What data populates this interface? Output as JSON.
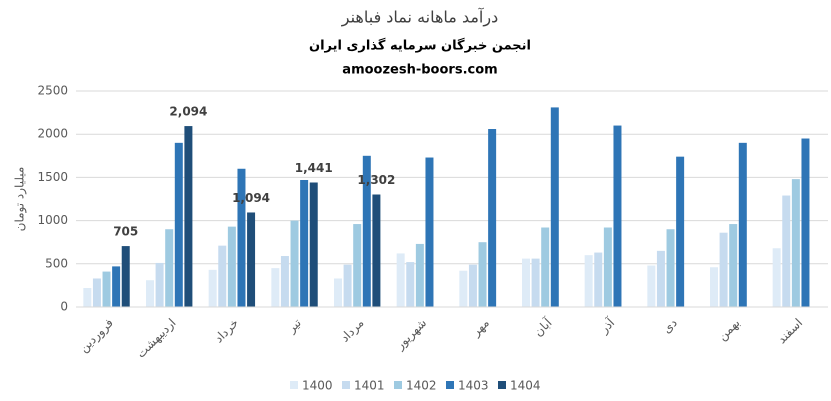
{
  "chart_data": {
    "type": "bar",
    "title": "درآمد ماهانه نماد فباهنر",
    "subtitle": "انجمن خبرگان سرمایه گذاری ایران",
    "website": "amoozesh-boors.com",
    "y_label": "میلیارد تومان",
    "categories": [
      "فروردین",
      "اردیبهشت",
      "خرداد",
      "تیر",
      "مرداد",
      "شهریور",
      "مهر",
      "آبان",
      "آذر",
      "دی",
      "بهمن",
      "اسفند"
    ],
    "series": [
      {
        "name": "1400",
        "color": "#deebf7",
        "values": [
          220,
          310,
          430,
          450,
          330,
          620,
          420,
          560,
          600,
          480,
          460,
          680
        ]
      },
      {
        "name": "1401",
        "color": "#c6dbef",
        "values": [
          330,
          510,
          710,
          590,
          490,
          520,
          490,
          560,
          630,
          650,
          860,
          1290
        ]
      },
      {
        "name": "1402",
        "color": "#9ecae1",
        "values": [
          410,
          900,
          930,
          1000,
          960,
          730,
          750,
          920,
          920,
          900,
          960,
          1480
        ]
      },
      {
        "name": "1403",
        "color": "#2e75b6",
        "values": [
          470,
          1900,
          1600,
          1470,
          1750,
          1730,
          2060,
          2310,
          2100,
          1740,
          1900,
          1950
        ]
      },
      {
        "name": "1404",
        "color": "#1f4e79",
        "values": [
          705,
          2094,
          1094,
          1441,
          1302,
          null,
          null,
          null,
          null,
          null,
          null,
          null
        ],
        "value_labels": [
          "705",
          "2,094",
          "1,094",
          "1,441",
          "1,302",
          null,
          null,
          null,
          null,
          null,
          null,
          null
        ]
      }
    ],
    "ylim": [
      0,
      2500
    ],
    "yticks": [
      0,
      500,
      1000,
      1500,
      2000,
      2500
    ],
    "grid": true,
    "legend": "bottom"
  }
}
